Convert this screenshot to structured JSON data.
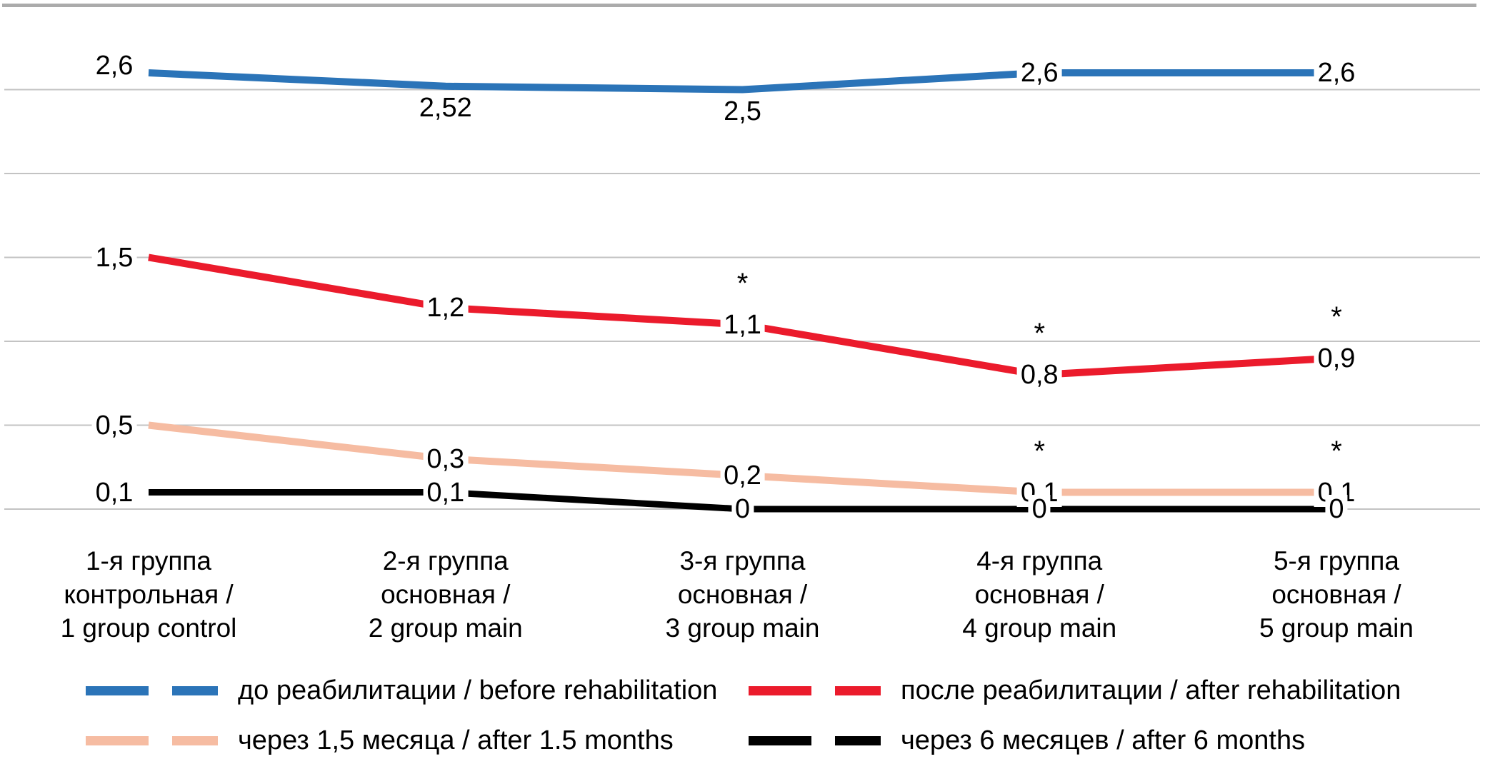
{
  "chart_data": {
    "type": "line",
    "title": "",
    "xlabel": "",
    "ylabel": "",
    "ylim": [
      0,
      3
    ],
    "gridline_step": 0.5,
    "grid": true,
    "y_axis_labels_visible": false,
    "legend_position": "bottom",
    "significance_marker": "*",
    "categories": [
      [
        "1-я группа",
        "контрольная /",
        "1 group control"
      ],
      [
        "2-я группа",
        "основная /",
        "2 group main"
      ],
      [
        "3-я группа",
        "основная /",
        "3 group main"
      ],
      [
        "4-я группа",
        "основная /",
        "4 group main"
      ],
      [
        "5-я группа",
        "основная /",
        "5 group main"
      ]
    ],
    "series": [
      {
        "name": "до реабилитации / before rehabilitation",
        "color": "#2B74B8",
        "values": [
          2.6,
          2.52,
          2.5,
          2.6,
          2.6
        ],
        "labels": [
          "2,6",
          "2,52",
          "2,5",
          "2,6",
          "2,6"
        ],
        "asterisks": [
          false,
          false,
          false,
          false,
          false
        ]
      },
      {
        "name": "после реабилитации / after rehabilitation",
        "color": "#EB1B2C",
        "values": [
          1.5,
          1.2,
          1.1,
          0.8,
          0.9
        ],
        "labels": [
          "1,5",
          "1,2",
          "1,1",
          "0,8",
          "0,9"
        ],
        "asterisks": [
          false,
          false,
          true,
          true,
          true
        ]
      },
      {
        "name": "через 1,5 месяца / after 1.5 months",
        "color": "#F6BCA2",
        "values": [
          0.5,
          0.3,
          0.2,
          0.1,
          0.1
        ],
        "labels": [
          "0,5",
          "0,3",
          "0,2",
          "0,1",
          "0,1"
        ],
        "asterisks": [
          false,
          false,
          false,
          true,
          true
        ]
      },
      {
        "name": "через 6 месяцев / after 6 months",
        "color": "#000000",
        "values": [
          0.1,
          0.1,
          0,
          0,
          0
        ],
        "labels": [
          "0,1",
          "0,1",
          "0",
          "0",
          "0"
        ],
        "asterisks": [
          false,
          false,
          false,
          false,
          false
        ]
      }
    ],
    "colors": {
      "gridline": "#C3C3C3",
      "top_border": "#ABABAB",
      "label_text": "#000000",
      "background": "#FFFFFF"
    }
  }
}
